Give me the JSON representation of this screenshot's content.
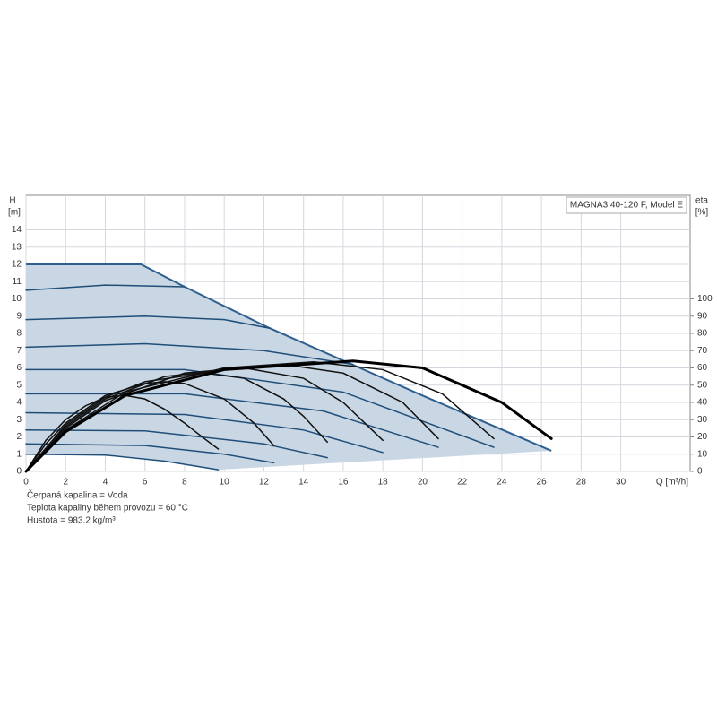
{
  "chart_data": {
    "type": "line",
    "title": "MAGNA3 40-120 F, Model E",
    "xlabel": "Q [m³/h]",
    "ylabel": "H",
    "ylabel_unit": "[m]",
    "y2label": "eta",
    "y2label_unit": "[%]",
    "notes": [
      "Čerpaná kapalina = Voda",
      "Teplota kapaliny během provozu = 60 °C",
      "Hustota = 983.2 kg/m³"
    ],
    "xlim": [
      0,
      33.5
    ],
    "xticks": [
      0,
      2,
      4,
      6,
      8,
      10,
      12,
      14,
      16,
      18,
      20,
      22,
      24,
      26,
      28,
      30
    ],
    "ylim": [
      0,
      16
    ],
    "yticks": [
      0,
      1,
      2,
      3,
      4,
      5,
      6,
      7,
      8,
      9,
      10,
      11,
      12,
      13,
      14
    ],
    "y2lim": [
      0,
      160
    ],
    "y2ticks": [
      0,
      10,
      20,
      30,
      40,
      50,
      60,
      70,
      80,
      90,
      100
    ],
    "grid": true,
    "area": {
      "color": "#c9d6e4",
      "edge_color": "#2e5f8f",
      "upper": {
        "x": [
          0,
          5.8,
          8,
          12.3,
          20,
          26.5
        ],
        "values": [
          12,
          12,
          10.7,
          8.3,
          4.4,
          1.2
        ]
      },
      "lower": {
        "x": [
          0,
          4,
          7,
          9.7,
          26.5
        ],
        "values": [
          1.0,
          0.95,
          0.6,
          0.1,
          1.2
        ]
      }
    },
    "series": [
      {
        "color": "#1f4e79",
        "width": 1.5,
        "x": [
          0,
          4,
          8
        ],
        "values": [
          10.5,
          10.8,
          10.7
        ]
      },
      {
        "color": "#1f4e79",
        "width": 1.5,
        "x": [
          0,
          6,
          10,
          12.3
        ],
        "values": [
          8.8,
          9.0,
          8.8,
          8.3
        ]
      },
      {
        "color": "#1f4e79",
        "width": 1.5,
        "x": [
          0,
          6,
          12,
          16.5
        ],
        "values": [
          7.2,
          7.4,
          7.0,
          6.2
        ]
      },
      {
        "color": "#1f4e79",
        "width": 1.5,
        "x": [
          0,
          8,
          16,
          23.6
        ],
        "values": [
          5.9,
          5.9,
          4.6,
          1.4
        ]
      },
      {
        "color": "#1f4e79",
        "width": 1.5,
        "x": [
          0,
          8,
          15,
          20.8
        ],
        "values": [
          4.5,
          4.5,
          3.5,
          1.4
        ]
      },
      {
        "color": "#1f4e79",
        "width": 1.5,
        "x": [
          0,
          8,
          14,
          18
        ],
        "values": [
          3.4,
          3.3,
          2.4,
          1.1
        ]
      },
      {
        "color": "#1f4e79",
        "width": 1.5,
        "x": [
          0,
          6,
          12,
          15.2
        ],
        "values": [
          2.4,
          2.35,
          1.6,
          0.8
        ]
      },
      {
        "color": "#1f4e79",
        "width": 1.5,
        "x": [
          0,
          6,
          10,
          12.5
        ],
        "values": [
          1.6,
          1.5,
          1.0,
          0.5
        ]
      },
      {
        "color": "#1f4e79",
        "width": 1.5,
        "x": [
          0,
          4,
          7,
          9.7
        ],
        "values": [
          1.0,
          0.95,
          0.6,
          0.1
        ]
      },
      {
        "axis": "y2",
        "color": "#111111",
        "width": 1.5,
        "x": [
          0,
          1,
          2,
          3,
          4,
          5,
          6,
          7,
          8,
          9,
          9.7
        ],
        "values": [
          0,
          18,
          30,
          38,
          43,
          44,
          42,
          36,
          28,
          19,
          13
        ]
      },
      {
        "axis": "y2",
        "color": "#111111",
        "width": 1.5,
        "x": [
          0,
          1,
          2,
          4,
          6,
          7,
          8,
          10,
          11.5,
          12.5
        ],
        "values": [
          0,
          16,
          28,
          44,
          51,
          52,
          51,
          42,
          28,
          15
        ]
      },
      {
        "axis": "y2",
        "color": "#111111",
        "width": 1.5,
        "x": [
          0,
          2,
          4,
          6,
          9,
          11,
          13,
          14,
          15.2
        ],
        "values": [
          0,
          27,
          43,
          52,
          57,
          54,
          42,
          32,
          17
        ]
      },
      {
        "axis": "y2",
        "color": "#111111",
        "width": 1.5,
        "x": [
          0,
          2,
          4,
          7,
          11,
          14,
          16,
          18
        ],
        "values": [
          0,
          26,
          42,
          55,
          60,
          54,
          40,
          18
        ]
      },
      {
        "axis": "y2",
        "color": "#111111",
        "width": 1.5,
        "x": [
          0,
          2,
          4,
          8,
          13,
          16,
          19,
          20.8
        ],
        "values": [
          0,
          25,
          41,
          57,
          62,
          57,
          40,
          19
        ]
      },
      {
        "axis": "y2",
        "color": "#111111",
        "width": 1.5,
        "x": [
          0,
          2,
          5,
          10,
          14.5,
          18,
          21,
          23.6
        ],
        "values": [
          0,
          24,
          46,
          60,
          63.5,
          59,
          45,
          19
        ]
      },
      {
        "axis": "y2",
        "color": "#000000",
        "width": 3,
        "x": [
          0,
          2,
          5,
          10,
          16.5,
          20,
          24,
          26.5
        ],
        "values": [
          0,
          23,
          44,
          59,
          64,
          60,
          40,
          19
        ]
      }
    ]
  }
}
